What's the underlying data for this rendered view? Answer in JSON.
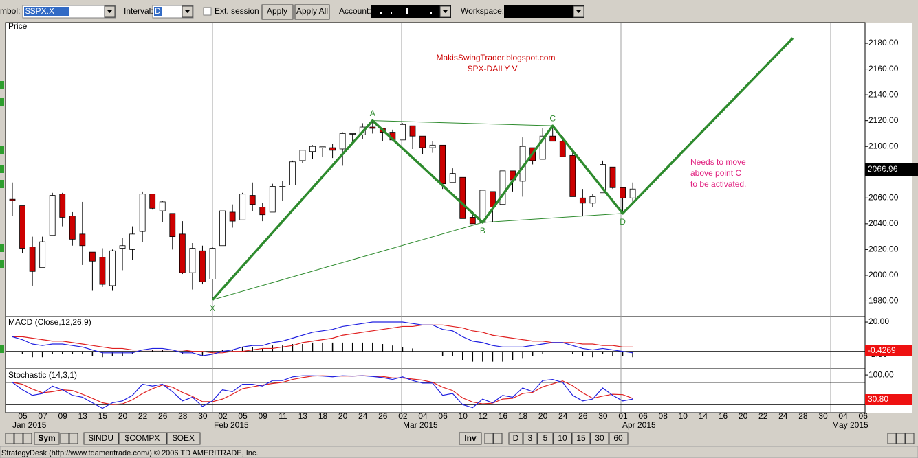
{
  "toolbar": {
    "symbol_label": "mbol:",
    "symbol": "$SPX.X",
    "interval_label": "Interval:",
    "interval": "D",
    "ext_session": "Ext. session",
    "apply": "Apply",
    "apply_all": "Apply All",
    "account_label": "Account:",
    "workspace_label": "Workspace:"
  },
  "price_panel": {
    "label": "Price",
    "ylim": [
      1968,
      2196
    ],
    "yticks": [
      {
        "value": 1980,
        "label": "1980.00"
      },
      {
        "value": 2000,
        "label": "2000.00"
      },
      {
        "value": 2020,
        "label": "2020.00"
      },
      {
        "value": 2040,
        "label": "2040.00"
      },
      {
        "value": 2060,
        "label": "2060.00"
      },
      {
        "value": 2080,
        "label": "2080.00"
      },
      {
        "value": 2100,
        "label": "2100.00"
      },
      {
        "value": 2120,
        "label": "2120.00"
      },
      {
        "value": 2140,
        "label": "2140.00"
      },
      {
        "value": 2160,
        "label": "2160.00"
      },
      {
        "value": 2180,
        "label": "2180.00"
      }
    ],
    "last_price": "2066.96",
    "up_color": "#ffffff",
    "down_color": "#cc0000",
    "ohlc": [
      [
        2059,
        2072,
        2046,
        2058
      ],
      [
        2054,
        2054,
        2017,
        2021
      ],
      [
        2022,
        2030,
        1992,
        2003
      ],
      [
        2006,
        2030,
        2006,
        2026
      ],
      [
        2031,
        2064,
        2031,
        2062
      ],
      [
        2063,
        2064,
        2038,
        2045
      ],
      [
        2046,
        2049,
        2023,
        2028
      ],
      [
        2032,
        2057,
        2008,
        2023
      ],
      [
        2018,
        2018,
        1988,
        2011
      ],
      [
        2014,
        2021,
        1991,
        1993
      ],
      [
        1992,
        2020,
        1988,
        2019
      ],
      [
        2021,
        2029,
        2004,
        2023
      ],
      [
        2020,
        2038,
        2012,
        2032
      ],
      [
        2034,
        2065,
        2026,
        2063
      ],
      [
        2063,
        2063,
        2051,
        2052
      ],
      [
        2050,
        2058,
        2041,
        2057
      ],
      [
        2048,
        2048,
        2020,
        2030
      ],
      [
        2032,
        2042,
        2001,
        2002
      ],
      [
        2002,
        2025,
        1989,
        2021
      ],
      [
        2019,
        2023,
        1993,
        1995
      ],
      [
        1997,
        2022,
        1981,
        2021
      ],
      [
        2023,
        2050,
        2023,
        2050
      ],
      [
        2049,
        2055,
        2037,
        2042
      ],
      [
        2043,
        2064,
        2043,
        2063
      ],
      [
        2062,
        2072,
        2050,
        2055
      ],
      [
        2053,
        2056,
        2042,
        2047
      ],
      [
        2049,
        2071,
        2049,
        2069
      ],
      [
        2069,
        2073,
        2058,
        2069
      ],
      [
        2070,
        2089,
        2070,
        2088
      ],
      [
        2089,
        2097,
        2087,
        2097
      ],
      [
        2096,
        2101,
        2090,
        2100
      ],
      [
        2099,
        2100,
        2092,
        2100
      ],
      [
        2099,
        2102,
        2091,
        2097
      ],
      [
        2098,
        2111,
        2085,
        2110
      ],
      [
        2110,
        2110,
        2102,
        2110
      ],
      [
        2109,
        2118,
        2106,
        2115
      ],
      [
        2115,
        2120,
        2110,
        2114
      ],
      [
        2114,
        2114,
        2104,
        2111
      ],
      [
        2111,
        2113,
        2104,
        2105
      ],
      [
        2105,
        2118,
        2105,
        2117
      ],
      [
        2116,
        2116,
        2098,
        2108
      ],
      [
        2108,
        2108,
        2094,
        2099
      ],
      [
        2099,
        2104,
        2095,
        2101
      ],
      [
        2101,
        2101,
        2067,
        2071
      ],
      [
        2072,
        2083,
        2072,
        2079
      ],
      [
        2076,
        2076,
        2044,
        2044
      ],
      [
        2045,
        2050,
        2040,
        2040
      ],
      [
        2041,
        2066,
        2041,
        2066
      ],
      [
        2065,
        2065,
        2041,
        2053
      ],
      [
        2055,
        2081,
        2055,
        2081
      ],
      [
        2081,
        2081,
        2065,
        2074
      ],
      [
        2073,
        2107,
        2061,
        2100
      ],
      [
        2099,
        2099,
        2086,
        2089
      ],
      [
        2090,
        2114,
        2090,
        2108
      ],
      [
        2108,
        2115,
        2104,
        2104
      ],
      [
        2104,
        2108,
        2092,
        2092
      ],
      [
        2093,
        2097,
        2061,
        2061
      ],
      [
        2060,
        2067,
        2046,
        2056
      ],
      [
        2056,
        2063,
        2053,
        2061
      ],
      [
        2064,
        2089,
        2064,
        2086
      ],
      [
        2084,
        2084,
        2067,
        2068
      ],
      [
        2068,
        2068,
        2048,
        2060
      ],
      [
        2060,
        2072,
        2057,
        2066.96
      ]
    ],
    "annotations": [
      "MakisSwingTrader.blogspot.com",
      "SPX-DAILY  V",
      "Needs to move",
      "above point C",
      "to be activated."
    ],
    "pattern": {
      "color": "#2e8b2e",
      "points": [
        {
          "label": "X",
          "x": 20,
          "price": 1981
        },
        {
          "label": "A",
          "x": 36,
          "price": 2120
        },
        {
          "label": "B",
          "x": 47,
          "price": 2041
        },
        {
          "label": "C",
          "x": 54,
          "price": 2116
        },
        {
          "label": "D",
          "x": 61,
          "price": 2048
        },
        {
          "x": 78,
          "price": 2184
        }
      ]
    }
  },
  "macd_panel": {
    "label": "MACD (Close,12,26,9)",
    "ylim": [
      -11.4,
      23.3
    ],
    "yticks": [
      {
        "value": 20,
        "label": "20.00"
      },
      {
        "value": -2.5,
        "label": "-2.50"
      }
    ],
    "last_label": "-0.4269",
    "macd": {
      "color": "#2020e0",
      "values": [
        10,
        8,
        5,
        4,
        5,
        5,
        4,
        3,
        1,
        -1,
        -1,
        -1,
        -1,
        1,
        2,
        2,
        1,
        -1,
        -1,
        -3,
        -2,
        0,
        1,
        3,
        4,
        4,
        6,
        7,
        9,
        11,
        13,
        14,
        15,
        17,
        18,
        19,
        20,
        20,
        20,
        20,
        19,
        18,
        18,
        15,
        14,
        10,
        7,
        6,
        4,
        3,
        3,
        3,
        4,
        5,
        6,
        6,
        4,
        2,
        1,
        2,
        1,
        0,
        -1
      ]
    },
    "signal": {
      "color": "#e02020",
      "values": [
        10,
        10,
        9,
        8,
        7,
        7,
        6,
        5,
        4,
        3,
        2,
        2,
        1,
        1,
        1,
        1,
        1,
        1,
        0,
        0,
        -1,
        -1,
        0,
        0,
        1,
        2,
        2,
        3,
        4,
        6,
        7,
        8,
        9,
        11,
        12,
        13,
        14,
        15,
        16,
        17,
        17,
        18,
        18,
        18,
        17,
        16,
        14,
        13,
        11,
        10,
        9,
        8,
        7,
        7,
        6,
        6,
        6,
        5,
        5,
        4,
        4,
        3,
        3
      ]
    },
    "histogram": {
      "color": "#000000",
      "values": [
        0,
        -2,
        -4,
        -4,
        -2,
        -2,
        -2,
        -2,
        -3,
        -4,
        -3,
        -3,
        -2,
        0,
        1,
        1,
        0,
        -2,
        -1,
        -3,
        -1,
        1,
        1,
        3,
        3,
        2,
        4,
        4,
        5,
        5,
        6,
        6,
        6,
        6,
        6,
        6,
        6,
        5,
        4,
        3,
        2,
        0,
        0,
        -3,
        -3,
        -6,
        -7,
        -7,
        -7,
        -7,
        -6,
        -5,
        -3,
        -2,
        0,
        0,
        -2,
        -3,
        -4,
        -2,
        -3,
        -3,
        -4
      ]
    }
  },
  "stochastic_panel": {
    "label": "Stochastic (14,3,1)",
    "ylim": [
      0,
      115
    ],
    "yticks": [
      {
        "value": 100,
        "label": "100.00"
      }
    ],
    "levels": [
      80,
      20
    ],
    "last_label": "30.80",
    "k": {
      "color": "#2020e0",
      "values": [
        80,
        60,
        45,
        50,
        70,
        60,
        45,
        40,
        25,
        10,
        25,
        30,
        45,
        75,
        70,
        75,
        55,
        30,
        40,
        15,
        30,
        60,
        55,
        75,
        75,
        70,
        85,
        85,
        95,
        98,
        98,
        97,
        95,
        98,
        97,
        98,
        96,
        93,
        88,
        95,
        85,
        78,
        78,
        45,
        50,
        20,
        12,
        35,
        25,
        45,
        40,
        65,
        55,
        85,
        88,
        80,
        45,
        30,
        35,
        65,
        45,
        30,
        35
      ]
    },
    "d": {
      "color": "#e02020",
      "values": [
        80,
        75,
        62,
        52,
        55,
        60,
        58,
        48,
        37,
        25,
        20,
        22,
        33,
        50,
        63,
        73,
        67,
        53,
        42,
        28,
        28,
        35,
        48,
        63,
        68,
        73,
        77,
        80,
        88,
        93,
        97,
        98,
        97,
        97,
        97,
        98,
        97,
        96,
        92,
        92,
        89,
        86,
        80,
        67,
        58,
        38,
        27,
        22,
        24,
        35,
        37,
        50,
        53,
        68,
        76,
        84,
        71,
        52,
        37,
        43,
        48,
        47,
        37
      ]
    }
  },
  "x_axis": {
    "day_labels": [
      "05",
      "07",
      "09",
      "13",
      "15",
      "20",
      "22",
      "26",
      "28",
      "30",
      "02",
      "05",
      "09",
      "11",
      "13",
      "18",
      "20",
      "24",
      "26",
      "02",
      "04",
      "06",
      "10",
      "12",
      "16",
      "18",
      "20",
      "24",
      "26",
      "30",
      "01",
      "06",
      "08",
      "10",
      "14",
      "16",
      "20",
      "22",
      "24",
      "28",
      "30",
      "04",
      "06"
    ],
    "month_labels": [
      "Jan 2015",
      "Feb 2015",
      "Mar 2015",
      "Apr 2015",
      "May 2015"
    ]
  },
  "bottom_bar": {
    "left_tabs": [
      "Sym",
      "$INDU",
      "$COMPX",
      "$OEX"
    ],
    "right_tabs": [
      "Inv",
      "D",
      "3",
      "5",
      "10",
      "15",
      "30",
      "60"
    ]
  },
  "status_bar": "StrategyDesk (http://www.tdameritrade.com/) © 2006 TD AMERITRADE, Inc."
}
